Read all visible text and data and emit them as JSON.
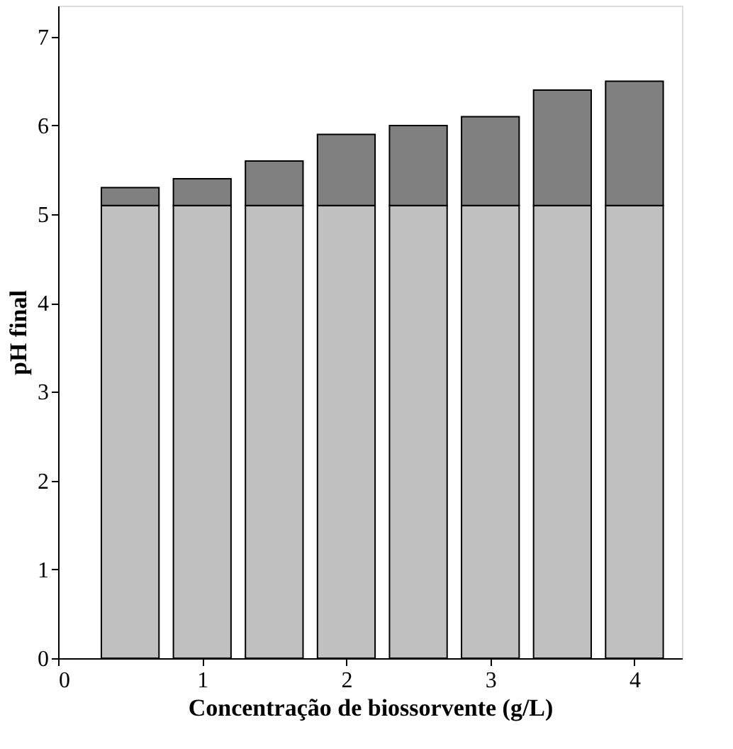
{
  "chart_data": {
    "type": "bar",
    "stacked": true,
    "xlabel": "Concentração de biossorvente (g/L)",
    "ylabel": "pH final",
    "x": [
      0.5,
      1,
      1.5,
      2,
      2.5,
      3,
      3.5,
      4
    ],
    "series": [
      {
        "color": "#c0c0c0",
        "values": [
          5.1,
          5.1,
          5.1,
          5.1,
          5.1,
          5.1,
          5.1,
          5.1
        ]
      },
      {
        "color": "#808080",
        "values": [
          0.2,
          0.3,
          0.5,
          0.8,
          0.9,
          1.0,
          1.3,
          1.4
        ]
      }
    ],
    "xlim": [
      0,
      4.33
    ],
    "ylim": [
      0,
      7.35
    ],
    "xticks": [
      0,
      1,
      2,
      3,
      4
    ],
    "yticks": [
      0,
      1,
      2,
      3,
      4,
      5,
      6,
      7
    ],
    "grid": false
  }
}
